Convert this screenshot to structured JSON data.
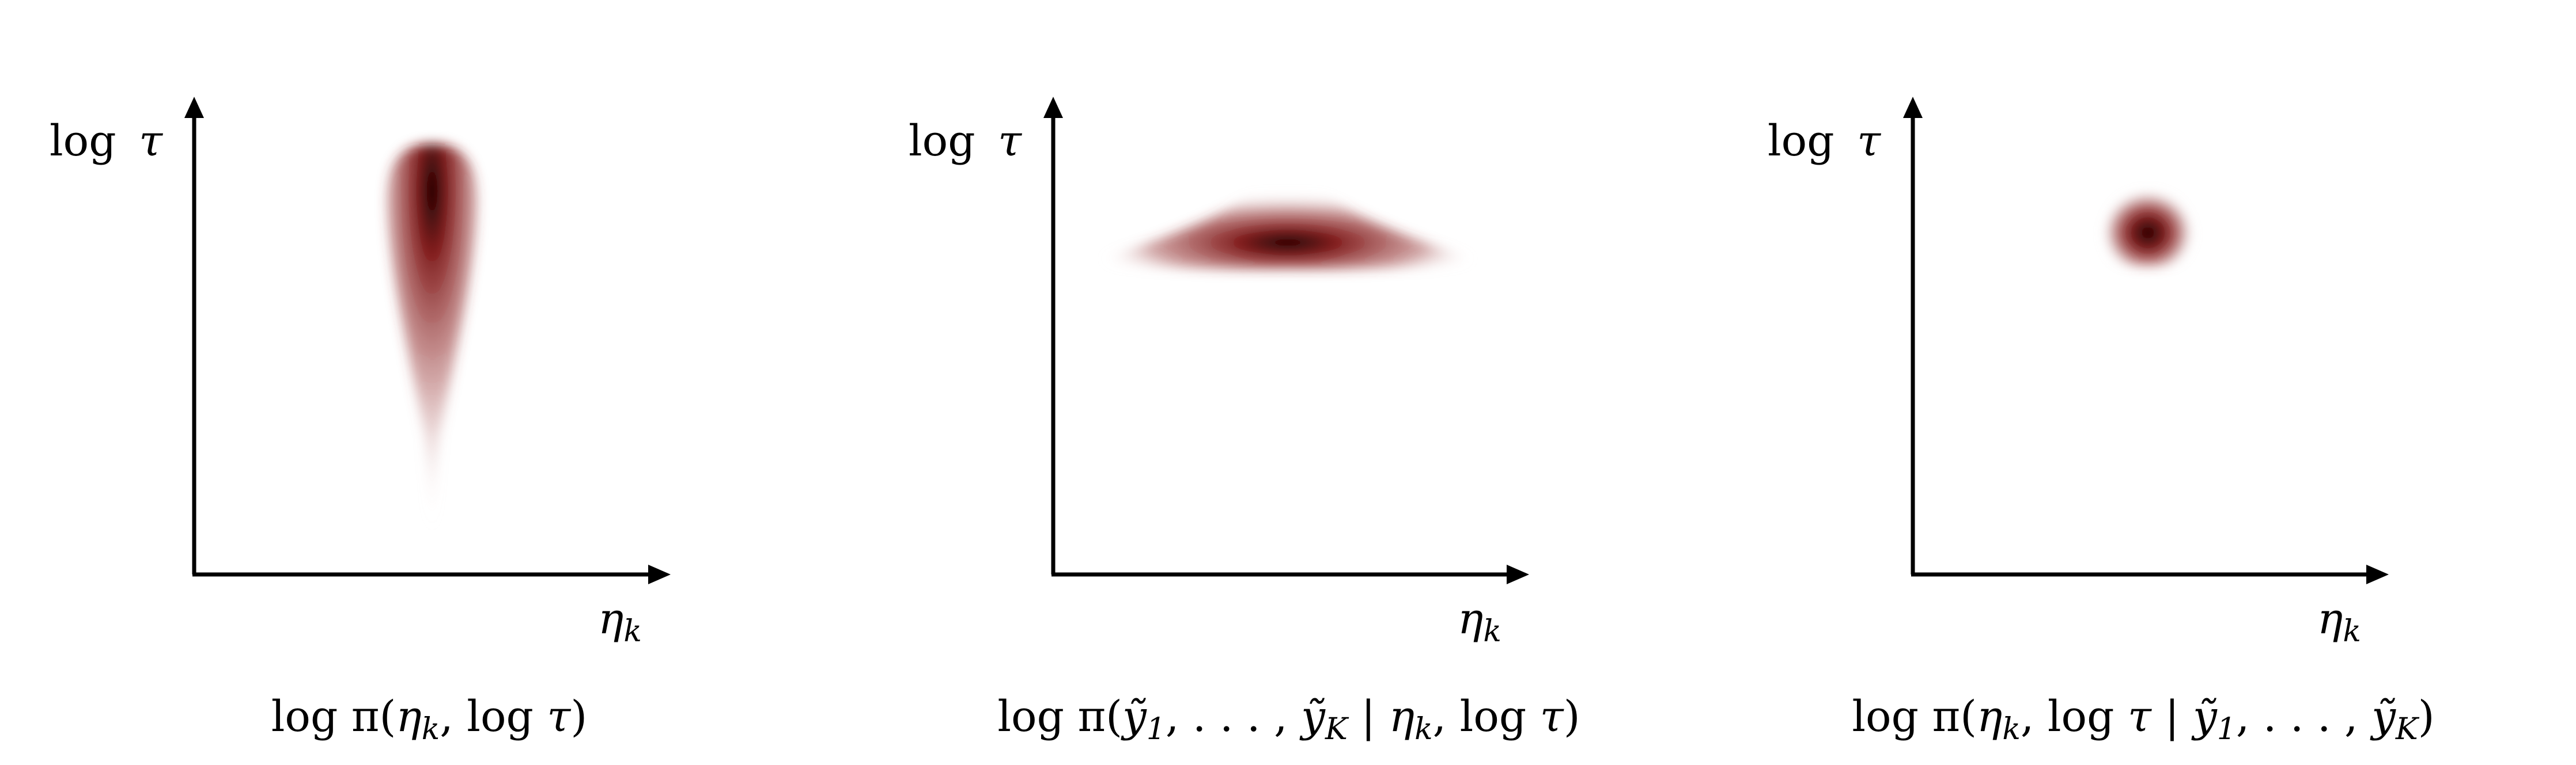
{
  "colors": {
    "density_core": "#0a0000",
    "density_mid": "#7a1010",
    "density_edge": "#9a3a3a",
    "axes": "#000000",
    "background": "#ffffff"
  },
  "panels": [
    {
      "id": "prior",
      "ylabel_fn": "log",
      "ylabel_var": "τ",
      "xlabel_var": "η",
      "xlabel_sub": "k",
      "caption_parts": [
        "log π(",
        "η",
        "k",
        ", log ",
        "τ",
        ")"
      ],
      "caption_styles": [
        "r",
        "i",
        "s",
        "r",
        "i",
        "r"
      ],
      "density_shape": "vertical-teardrop"
    },
    {
      "id": "likelihood",
      "ylabel_fn": "log",
      "ylabel_var": "τ",
      "xlabel_var": "η",
      "xlabel_sub": "k",
      "caption_parts": [
        "log π(",
        "ỹ",
        "1",
        ", . . . , ",
        "ỹ",
        "K",
        " | ",
        "η",
        "k",
        ", log ",
        "τ",
        ")"
      ],
      "caption_styles": [
        "r",
        "i",
        "s",
        "r",
        "i",
        "s",
        "r",
        "i",
        "s",
        "r",
        "i",
        "r"
      ],
      "density_shape": "horizontal-triangle"
    },
    {
      "id": "posterior",
      "ylabel_fn": "log",
      "ylabel_var": "τ",
      "xlabel_var": "η",
      "xlabel_sub": "k",
      "caption_parts": [
        "log π(",
        "η",
        "k",
        ", log ",
        "τ",
        " | ",
        "ỹ",
        "1",
        ", . . . , ",
        "ỹ",
        "K",
        ")"
      ],
      "caption_styles": [
        "r",
        "i",
        "s",
        "r",
        "i",
        "r",
        "i",
        "s",
        "r",
        "i",
        "s",
        "r"
      ],
      "density_shape": "small-blob"
    }
  ]
}
